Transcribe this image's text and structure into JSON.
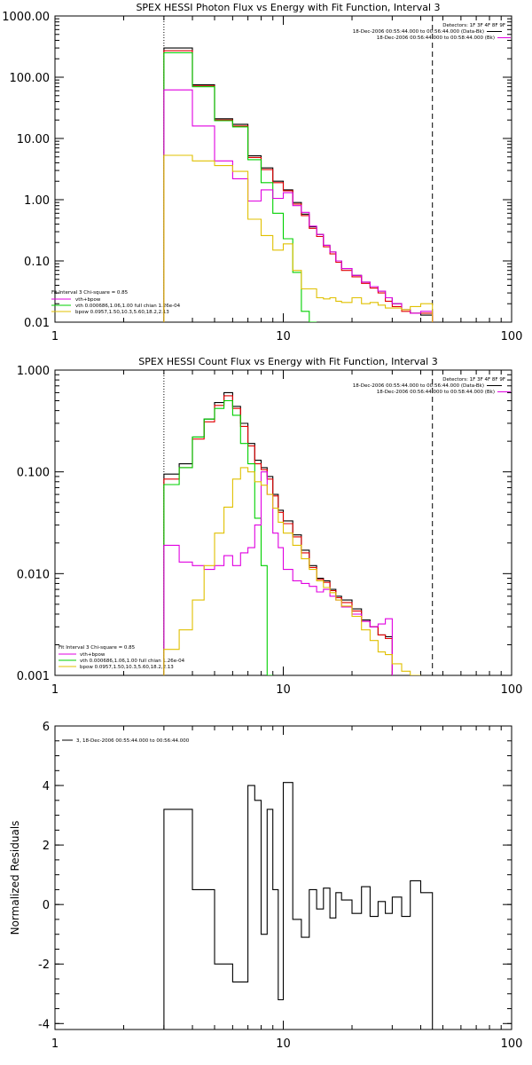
{
  "colors": {
    "data": "#000000",
    "background": "#e00000",
    "vth": "#00d000",
    "sum": "#e000e0",
    "bpow": "#e0c000"
  },
  "chart_data": [
    {
      "type": "line",
      "title": "SPEX HESSI Photon Flux vs Energy with Fit Function, Interval 3",
      "xscale": "log",
      "yscale": "log",
      "xlim": [
        1,
        100
      ],
      "ylim": [
        0.01,
        1000
      ],
      "xticks": [
        1,
        10,
        100
      ],
      "xtick_labels": [
        "1",
        "10",
        "100"
      ],
      "yticks": [
        0.01,
        0.1,
        1,
        10,
        100,
        1000
      ],
      "ytick_labels": [
        "0.01",
        "0.10",
        "1.00",
        "10.00",
        "100.00",
        "1000.00"
      ],
      "vlines": [
        {
          "x": 3,
          "style": "dotted"
        },
        {
          "x": 45,
          "style": "dashed"
        }
      ],
      "header": [
        "Detectors: 1F 3F 4F 8F 9F",
        "18-Dec-2006 00:55:44.000 to 00:56:44.000 (Data-Bk)",
        "18-Dec-2006 00:56:44.000 to 00:58:44.000 (Bk)"
      ],
      "legend": [
        "Fit Interval 3   Chi-square = 0.85",
        "vth+bpow",
        "vth 0.000686,1.06,1.00   full chian 1.26e-04",
        "bpow 0.0957,1.50,10.3,5.60,18.2,2.13"
      ],
      "bin_edges": [
        3,
        3.5,
        4,
        4.5,
        5,
        5.5,
        6,
        6.5,
        7,
        7.5,
        8,
        8.5,
        9,
        9.5,
        10,
        11,
        12,
        13,
        14,
        15,
        16,
        17,
        18,
        20,
        22,
        24,
        26,
        28,
        30,
        33,
        36,
        40,
        45
      ],
      "series": [
        {
          "values": [
            300,
            300,
            75,
            75,
            21,
            21,
            17,
            17,
            5.2,
            5.2,
            3.3,
            3.3,
            2,
            2,
            1.45,
            0.9,
            0.58,
            0.36,
            0.27,
            0.18,
            0.14,
            0.1,
            0.075,
            0.058,
            0.045,
            0.038,
            0.032,
            0.025,
            0.02,
            0.016,
            0.014,
            0.013
          ]
        },
        {
          "values": [
            270,
            270,
            72,
            72,
            20,
            20,
            16,
            16,
            4.9,
            4.9,
            3.1,
            3.1,
            1.9,
            1.9,
            1.4,
            0.85,
            0.55,
            0.34,
            0.25,
            0.17,
            0.13,
            0.095,
            0.07,
            0.055,
            0.043,
            0.036,
            0.03,
            0.022,
            0.018,
            0.015,
            0.014,
            0.014
          ]
        },
        {
          "values": [
            250,
            250,
            70,
            70,
            19.5,
            19.5,
            15.5,
            15.5,
            4.5,
            4.5,
            1.9,
            1.9,
            0.6,
            0.6,
            0.23,
            0.065,
            0.015,
            0.008
          ]
        },
        {
          "values": [
            62,
            62,
            16,
            16,
            4.3,
            4.3,
            2.2,
            2.2,
            0.95,
            0.95,
            1.45,
            1.45,
            1.05,
            1.05,
            1.3,
            0.8,
            0.62,
            0.37,
            0.27,
            0.18,
            0.14,
            0.1,
            0.075,
            0.058,
            0.045,
            0.038,
            0.032,
            0.025,
            0.02,
            0.016,
            0.014,
            0.015
          ]
        },
        {
          "values": [
            5.3,
            5.3,
            4.3,
            4.3,
            3.6,
            3.6,
            2.9,
            2.9,
            0.48,
            0.48,
            0.26,
            0.26,
            0.15,
            0.15,
            0.19,
            0.07,
            0.035,
            0.035,
            0.025,
            0.024,
            0.025,
            0.022,
            0.021,
            0.025,
            0.02,
            0.021,
            0.019,
            0.017,
            0.017,
            0.016,
            0.018,
            0.02
          ]
        }
      ]
    },
    {
      "type": "line",
      "title": "SPEX HESSI Count Flux vs Energy with Fit Function, Interval 3",
      "xscale": "log",
      "yscale": "log",
      "xlim": [
        1,
        100
      ],
      "ylim": [
        0.001,
        1
      ],
      "xticks": [
        1,
        10,
        100
      ],
      "xtick_labels": [
        "1",
        "10",
        "100"
      ],
      "yticks": [
        0.001,
        0.01,
        0.1,
        1
      ],
      "ytick_labels": [
        "0.001",
        "0.010",
        "0.100",
        "1.000"
      ],
      "vlines": [
        {
          "x": 3,
          "style": "dotted"
        },
        {
          "x": 45,
          "style": "dashed"
        }
      ],
      "header": [
        "Detectors: 1F 3F 4F 8F 9F",
        "18-Dec-2006 00:55:44.000 to 00:56:44.000 (Data-Bk)",
        "18-Dec-2006 00:56:44.000 to 00:58:44.000 (Bk)"
      ],
      "legend": [
        "Fit Interval 3   Chi-square = 0.85",
        "vth+bpow",
        "vth 0.000686,1.06,1.00   full chian 1.26e-04",
        "bpow 0.0957,1.50,10.3,5.60,18.2,2.13"
      ],
      "bin_edges": [
        3,
        3.5,
        4,
        4.5,
        5,
        5.5,
        6,
        6.5,
        7,
        7.5,
        8,
        8.5,
        9,
        9.5,
        10,
        11,
        12,
        13,
        14,
        15,
        16,
        17,
        18,
        20,
        22,
        24,
        26,
        28,
        30,
        33,
        36,
        40,
        45,
        50,
        55,
        60
      ],
      "series": [
        {
          "values": [
            0.095,
            0.12,
            0.22,
            0.33,
            0.48,
            0.6,
            0.44,
            0.3,
            0.19,
            0.13,
            0.11,
            0.09,
            0.06,
            0.042,
            0.033,
            0.024,
            0.017,
            0.012,
            0.009,
            0.0085,
            0.007,
            0.006,
            0.0055,
            0.0045,
            0.0035,
            0.003,
            0.0025,
            0.0024
          ]
        },
        {
          "values": [
            0.085,
            0.11,
            0.21,
            0.31,
            0.45,
            0.56,
            0.42,
            0.28,
            0.18,
            0.12,
            0.105,
            0.085,
            0.058,
            0.04,
            0.031,
            0.023,
            0.016,
            0.0115,
            0.0088,
            0.0082,
            0.0068,
            0.0058,
            0.0052,
            0.0043,
            0.0034,
            0.003,
            0.0025,
            0.0023
          ]
        },
        {
          "values": [
            0.075,
            0.11,
            0.22,
            0.33,
            0.42,
            0.5,
            0.36,
            0.19,
            0.12,
            0.035,
            0.012,
            0.001
          ]
        },
        {
          "values": [
            0.019,
            0.013,
            0.012,
            0.011,
            0.012,
            0.015,
            0.012,
            0.016,
            0.018,
            0.03,
            0.1,
            0.06,
            0.025,
            0.018,
            0.011,
            0.0085,
            0.008,
            0.0075,
            0.0066,
            0.007,
            0.006,
            0.0055,
            0.0047,
            0.004,
            0.0034,
            0.003,
            0.0032,
            0.0036
          ]
        },
        {
          "values": [
            0.0018,
            0.0028,
            0.0055,
            0.012,
            0.025,
            0.045,
            0.085,
            0.11,
            0.1,
            0.08,
            0.074,
            0.06,
            0.044,
            0.032,
            0.025,
            0.019,
            0.014,
            0.011,
            0.0085,
            0.0073,
            0.0065,
            0.0055,
            0.0048,
            0.0038,
            0.0028,
            0.0022,
            0.0017,
            0.0016,
            0.0013,
            0.0011,
            0.001
          ]
        }
      ]
    },
    {
      "type": "line",
      "title": "",
      "xscale": "log",
      "yscale": "linear",
      "ylabel": "Normalized Residuals",
      "xlim": [
        1,
        100
      ],
      "ylim": [
        -4.2,
        6
      ],
      "xticks": [
        1,
        10,
        100
      ],
      "xtick_labels": [
        "1",
        "10",
        "100"
      ],
      "yticks": [
        -4,
        -2,
        0,
        2,
        4,
        6
      ],
      "ytick_labels": [
        "-4",
        "-2",
        "0",
        "2",
        "4",
        "6"
      ],
      "legend": [
        "3, 18-Dec-2006 00:55:44.000 to 00:56:44.000"
      ],
      "bin_edges": [
        3,
        4,
        5,
        6,
        7,
        7.5,
        8,
        8.5,
        9,
        9.5,
        10,
        11,
        12,
        13,
        14,
        15,
        16,
        17,
        18,
        20,
        22,
        24,
        26,
        28,
        30,
        33,
        36,
        40,
        45
      ],
      "series": [
        {
          "values": [
            3.2,
            0.5,
            -2,
            -2.6,
            4,
            3.5,
            -1,
            3.2,
            0.5,
            -3.2,
            4.1,
            -0.5,
            -1.1,
            0.5,
            -0.15,
            0.55,
            -0.45,
            0.4,
            0.15,
            -0.3,
            0.6,
            -0.4,
            0.1,
            -0.3,
            0.25,
            -0.4,
            0.8,
            0.4
          ]
        }
      ]
    }
  ]
}
